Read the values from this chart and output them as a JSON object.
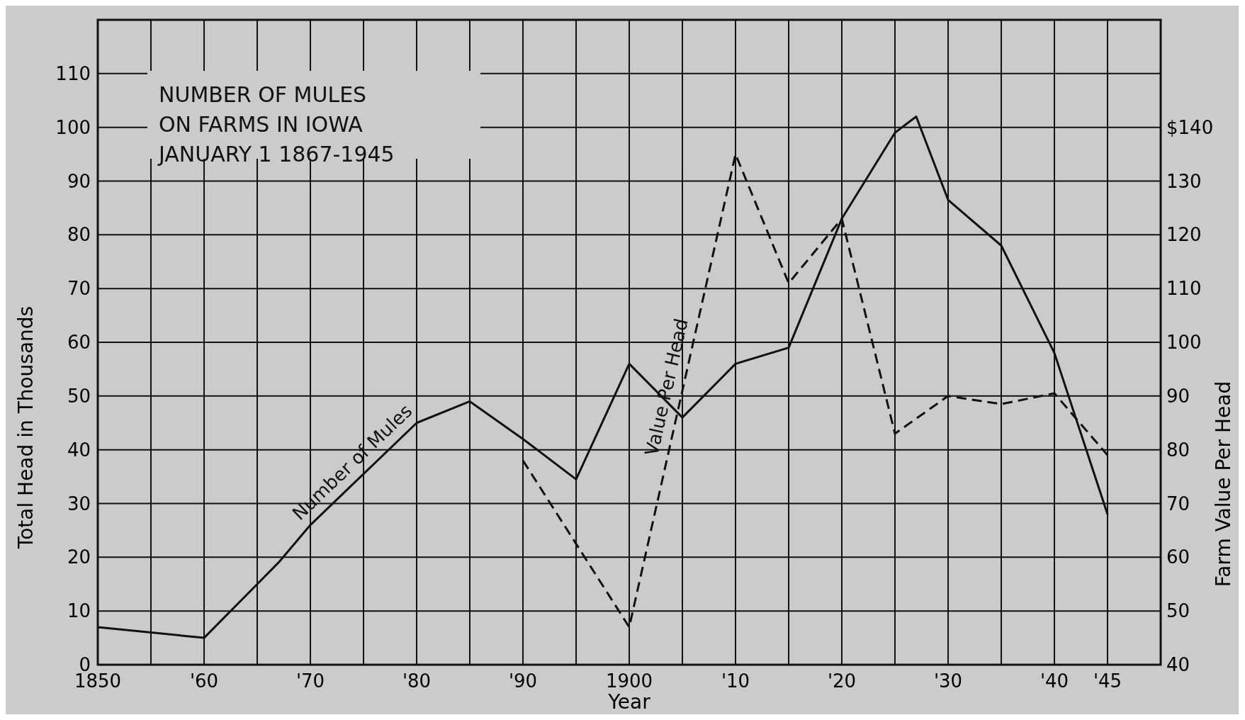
{
  "chart_data": {
    "type": "line",
    "title": "NUMBER OF MULES\nON FARMS IN IOWA\nJANUARY 1 1867-1945",
    "xlabel": "Year",
    "ylabel": "Total Head in Thousands",
    "y2label": "Farm Value Per Head",
    "xlim": [
      1850,
      1950
    ],
    "xticks": [
      {
        "value": 1850,
        "label": "1850"
      },
      {
        "value": 1860,
        "label": "'60"
      },
      {
        "value": 1870,
        "label": "'70"
      },
      {
        "value": 1880,
        "label": "'80"
      },
      {
        "value": 1890,
        "label": "'90"
      },
      {
        "value": 1900,
        "label": "1900"
      },
      {
        "value": 1910,
        "label": "'10"
      },
      {
        "value": 1920,
        "label": "'20"
      },
      {
        "value": 1930,
        "label": "'30"
      },
      {
        "value": 1940,
        "label": "'40"
      },
      {
        "value": 1945,
        "label": "'45"
      }
    ],
    "ylim": [
      0,
      120
    ],
    "yticks": [
      0,
      10,
      20,
      30,
      40,
      50,
      60,
      70,
      80,
      90,
      100,
      110
    ],
    "y2lim": [
      40,
      160
    ],
    "y2ticks": [
      40,
      50,
      60,
      70,
      80,
      90,
      100,
      110,
      120,
      130,
      {
        "value": 140,
        "label": "$140"
      }
    ],
    "grid": true,
    "line_style": "solid",
    "series": [
      {
        "name": "Number of Mules",
        "color": "#111111",
        "x": [
          1850,
          1860,
          1865,
          1867,
          1870,
          1880,
          1885,
          1890,
          1895,
          1900,
          1905,
          1910,
          1915,
          1920,
          1925,
          1927,
          1930,
          1935,
          1940,
          1945
        ],
        "values": [
          7,
          5,
          15,
          19,
          26,
          45,
          49,
          42,
          34.5,
          56,
          46,
          56,
          59,
          83,
          99,
          102,
          86.5,
          78,
          58,
          28
        ]
      },
      {
        "name": "Value Per Head",
        "color": "#111111",
        "axis": "y2",
        "line_style": "dashed",
        "x": [
          1890,
          1900,
          1910,
          1915,
          1920,
          1925,
          1930,
          1935,
          1940,
          1945
        ],
        "values": [
          78,
          47,
          135,
          111,
          123,
          83,
          90,
          88.5,
          90.5,
          79
        ]
      }
    ]
  }
}
